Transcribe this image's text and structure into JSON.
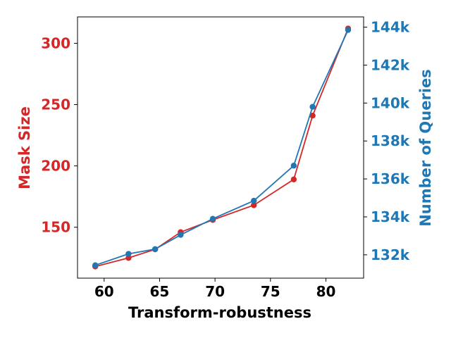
{
  "chart_data": {
    "type": "line",
    "xlabel": "Transform-robustness",
    "ylabel_left": "Mask Size",
    "ylabel_right": "Number of Queries",
    "xlim": [
      57.6,
      83.4
    ],
    "ylim_left": [
      108.5,
      321.5
    ],
    "ylim_right": [
      130.77,
      144.54
    ],
    "x_ticks": [
      60,
      65,
      70,
      75,
      80
    ],
    "y_left_ticks": [
      150,
      200,
      250,
      300
    ],
    "y_right_ticks": [
      132000,
      134000,
      136000,
      138000,
      140000,
      142000,
      144000
    ],
    "y_right_tick_labels": [
      "132k",
      "134k",
      "136k",
      "138k",
      "140k",
      "142k",
      "144k"
    ],
    "grid": false,
    "colors": {
      "left": "#d62728",
      "right": "#1f77b4",
      "axes": "#000000"
    },
    "series": [
      {
        "axis": "left",
        "color": "#d62728",
        "x": [
          59.2,
          62.2,
          64.6,
          66.9,
          69.8,
          73.5,
          77.1,
          78.8,
          82.0
        ],
        "y": [
          118,
          125,
          132,
          146,
          156,
          168,
          189,
          241,
          312
        ]
      },
      {
        "axis": "right",
        "color": "#1f77b4",
        "x": [
          59.2,
          62.2,
          64.6,
          66.9,
          69.8,
          73.5,
          77.1,
          78.8,
          82.0
        ],
        "y": [
          131.45,
          132.05,
          132.3,
          133.05,
          133.9,
          134.85,
          136.7,
          139.8,
          143.85
        ]
      }
    ]
  }
}
